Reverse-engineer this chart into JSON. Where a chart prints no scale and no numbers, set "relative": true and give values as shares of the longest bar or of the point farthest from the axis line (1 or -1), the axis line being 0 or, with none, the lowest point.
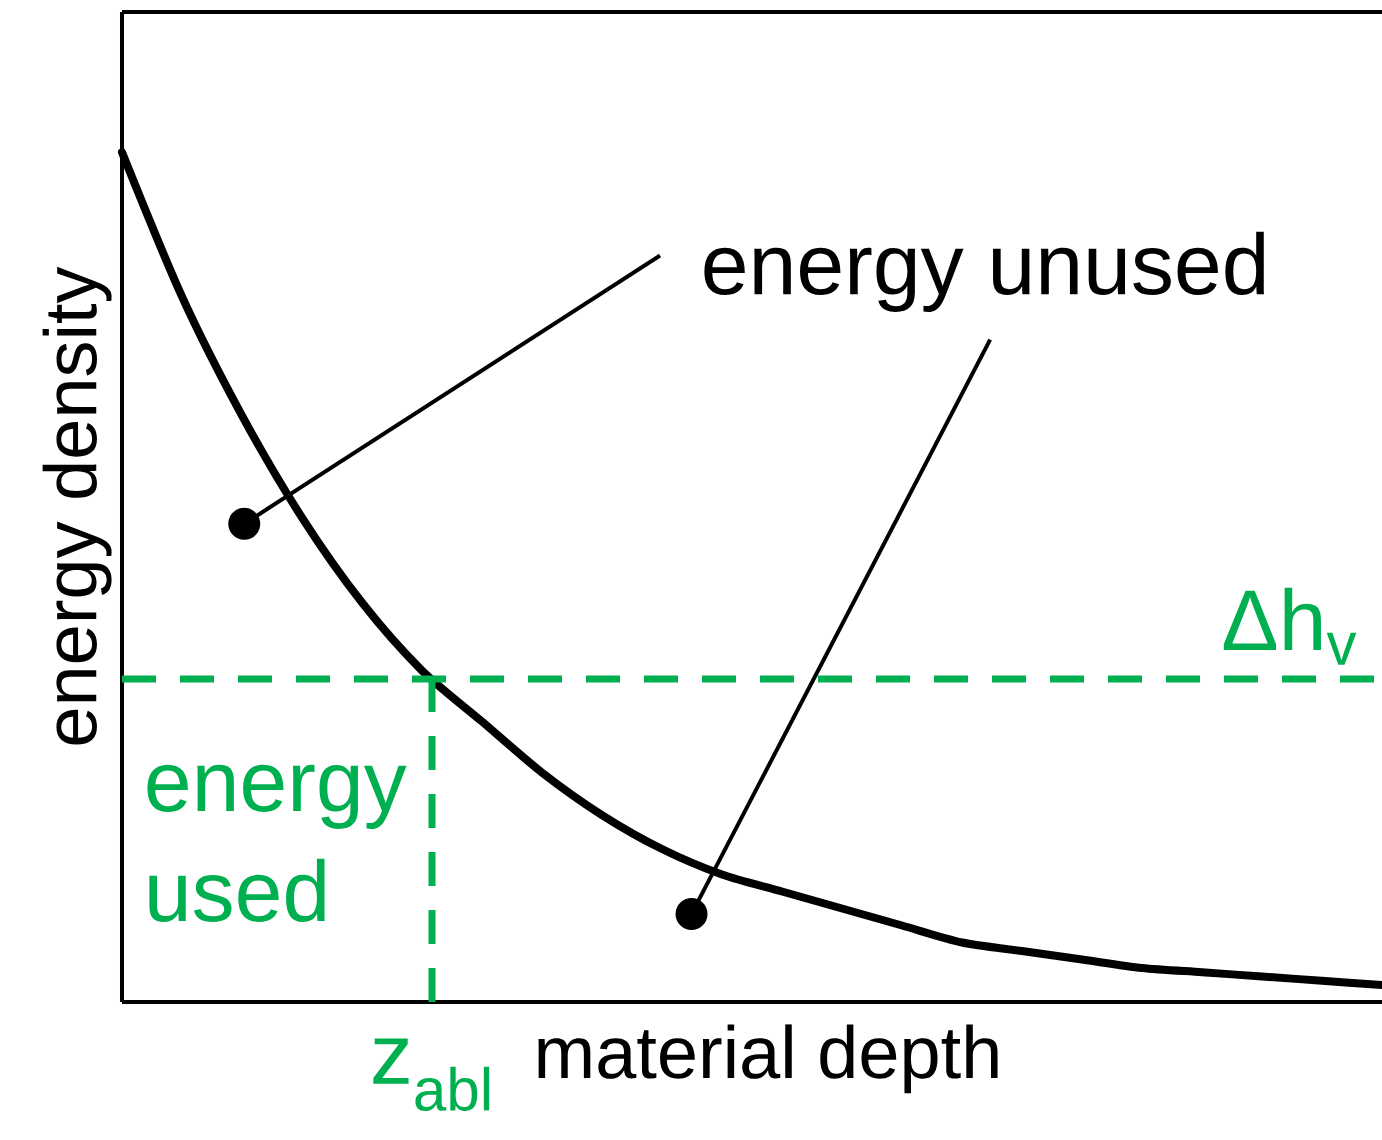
{
  "chart_data": {
    "type": "line",
    "relative": true,
    "xlabel": "material depth",
    "ylabel": "energy density",
    "categories": [
      null,
      null,
      null,
      null,
      null,
      null,
      null,
      null,
      null,
      null,
      null,
      null,
      null,
      null,
      null,
      null,
      null,
      null,
      null,
      null,
      null,
      null
    ],
    "series": [
      {
        "color": "#000000",
        "values": [
          1.0,
          0.83,
          0.69,
          0.57,
          0.47,
          0.39,
          0.33,
          0.27,
          0.22,
          0.18,
          0.15,
          0.13,
          0.11,
          0.09,
          0.07,
          0.06,
          0.05,
          0.04,
          0.035,
          0.03,
          0.025,
          0.02
        ]
      }
    ],
    "ref_lines": [
      {
        "axis": "y",
        "value": 0.38,
        "label": "Δh$_{v}$",
        "color": "#00b050",
        "line_style": "dashed"
      }
    ],
    "annotations": [
      "energy unused",
      "energy used",
      "z$_{abl}$"
    ]
  }
}
